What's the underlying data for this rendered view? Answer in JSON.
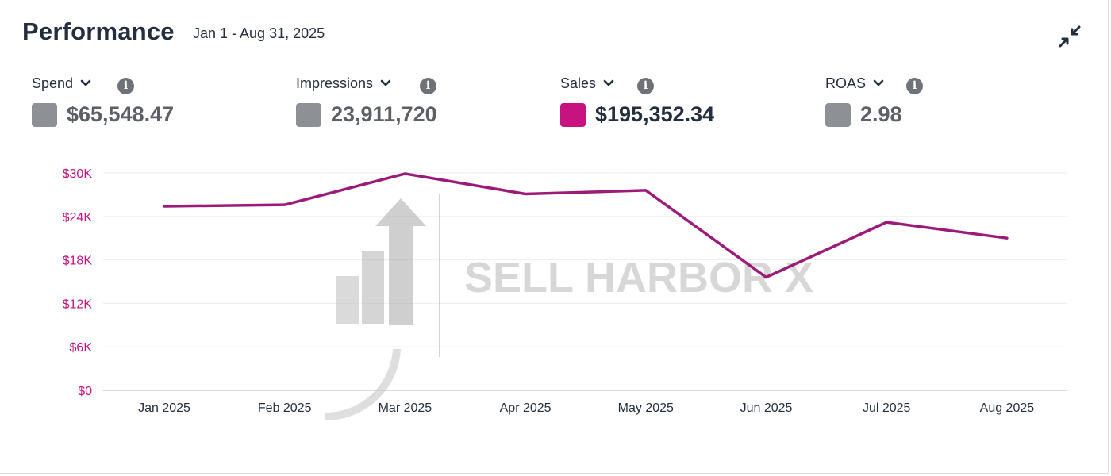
{
  "header": {
    "title": "Performance",
    "date_range": "Jan 1 - Aug 31, 2025"
  },
  "metrics": [
    {
      "label": "Spend",
      "value": "$65,548.47",
      "swatch_color": "#8d9094",
      "value_color": "#5c6066"
    },
    {
      "label": "Impressions",
      "value": "23,911,720",
      "swatch_color": "#8d9094",
      "value_color": "#5c6066"
    },
    {
      "label": "Sales",
      "value": "$195,352.34",
      "swatch_color": "#c7137f",
      "value_color": "#232f3e"
    },
    {
      "label": "ROAS",
      "value": "2.98",
      "swatch_color": "#8d9094",
      "value_color": "#5c6066"
    }
  ],
  "watermark": {
    "text": "SELL HARBOR X"
  },
  "chart_data": {
    "type": "line",
    "title": "",
    "xlabel": "",
    "ylabel": "",
    "categories": [
      "Jan 2025",
      "Feb 2025",
      "Mar 2025",
      "Apr 2025",
      "May 2025",
      "Jun 2025",
      "Jul 2025",
      "Aug 2025"
    ],
    "series": [
      {
        "name": "Sales",
        "color": "#9b1a7a",
        "values": [
          25400,
          25600,
          29900,
          27100,
          27600,
          15600,
          23200,
          21000
        ]
      }
    ],
    "ylim": [
      0,
      30000
    ],
    "y_ticks": [
      0,
      6000,
      12000,
      18000,
      24000,
      30000
    ],
    "y_tick_labels": [
      "$0",
      "$6K",
      "$12K",
      "$18K",
      "$24K",
      "$30K"
    ],
    "grid": true,
    "legend": "none"
  }
}
